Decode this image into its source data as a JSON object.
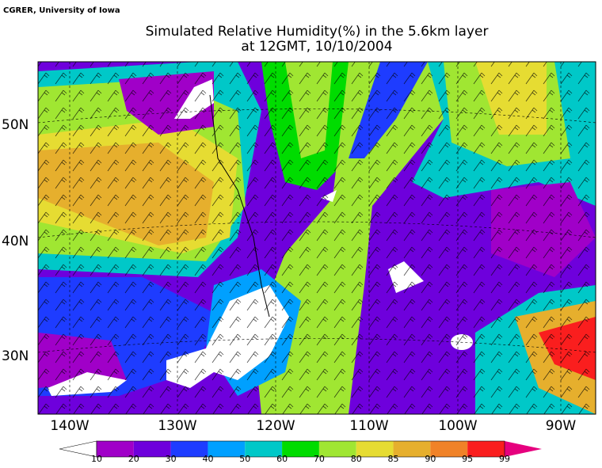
{
  "header": {
    "credit": "CGRER, University of Iowa",
    "title_line1": "Simulated Relative Humidity(%) in the 5.6km layer",
    "title_line2": "at 12GMT, 10/10/2004"
  },
  "map": {
    "latitude_labels": [
      "50N",
      "40N",
      "30N"
    ],
    "longitude_labels": [
      "140W",
      "130W",
      "120W",
      "110W",
      "100W",
      "90W"
    ]
  },
  "colorbar": {
    "levels": [
      10,
      20,
      30,
      40,
      50,
      60,
      70,
      80,
      85,
      90,
      95,
      99
    ],
    "colors": [
      "#a000c8",
      "#6e00dc",
      "#1e3cff",
      "#00a0ff",
      "#00c8c8",
      "#00dc00",
      "#a0e632",
      "#e6dc32",
      "#e6af2d",
      "#f08228",
      "#fa1e1e"
    ],
    "under_color": "#ffffff",
    "over_color": "#e6007e"
  }
}
